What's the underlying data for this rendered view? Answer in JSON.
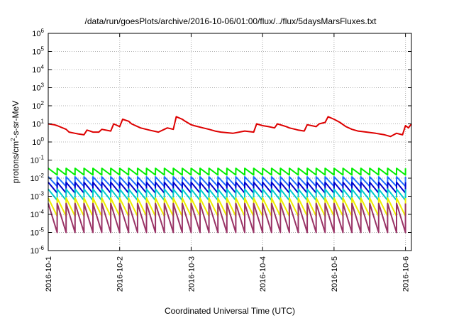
{
  "chart_data": {
    "type": "line",
    "title": "/data/run/goesPlots/archive/2016-10-06/01:00/flux/../flux/5daysMarsFluxes.txt",
    "xlabel": "Coordinated Universal Time (UTC)",
    "ylabel_prefix": "protons/cm",
    "ylabel_sup": "2",
    "ylabel_suffix": "-s-sr-MeV",
    "y_scale": "log",
    "ylim": [
      1e-06,
      1000000.0
    ],
    "xlim": [
      "2016-10-01T00:00",
      "2016-10-06T02:00"
    ],
    "grid": true,
    "legend": "none",
    "x_ticks": [
      "2016-10-1",
      "2016-10-2",
      "2016-10-3",
      "2016-10-4",
      "2016-10-5",
      "2016-10-6"
    ],
    "y_ticks": [
      {
        "base": "10",
        "exp": "6"
      },
      {
        "base": "10",
        "exp": "5"
      },
      {
        "base": "10",
        "exp": "4"
      },
      {
        "base": "10",
        "exp": "3"
      },
      {
        "base": "10",
        "exp": "2"
      },
      {
        "base": "10",
        "exp": "1"
      },
      {
        "base": "10",
        "exp": "0"
      },
      {
        "base": "10",
        "exp": "-1"
      },
      {
        "base": "10",
        "exp": "-2"
      },
      {
        "base": "10",
        "exp": "-3"
      },
      {
        "base": "10",
        "exp": "-4"
      },
      {
        "base": "10",
        "exp": "-5"
      },
      {
        "base": "10",
        "exp": "-6"
      }
    ],
    "series": [
      {
        "color": "#dd0000",
        "x": [
          "2016-10-01T00:00",
          "2016-10-01T02:00",
          "2016-10-01T03:00",
          "2016-10-01T06:00",
          "2016-10-01T07:00",
          "2016-10-01T09:00",
          "2016-10-01T10:00",
          "2016-10-01T12:00",
          "2016-10-01T13:00",
          "2016-10-01T14:00",
          "2016-10-01T15:00",
          "2016-10-01T17:00",
          "2016-10-01T18:00",
          "2016-10-01T21:00",
          "2016-10-01T22:00",
          "2016-10-02T00:00",
          "2016-10-02T01:00",
          "2016-10-02T03:00",
          "2016-10-02T04:00",
          "2016-10-02T07:00",
          "2016-10-02T10:00",
          "2016-10-02T13:00",
          "2016-10-02T16:00",
          "2016-10-02T18:00",
          "2016-10-02T19:00",
          "2016-10-02T21:00",
          "2016-10-02T22:00",
          "2016-10-03T00:00",
          "2016-10-03T01:00",
          "2016-10-03T04:00",
          "2016-10-03T06:00",
          "2016-10-03T08:00",
          "2016-10-03T10:00",
          "2016-10-03T14:00",
          "2016-10-03T18:00",
          "2016-10-03T21:00",
          "2016-10-03T22:00",
          "2016-10-04T00:00",
          "2016-10-04T02:00",
          "2016-10-04T04:00",
          "2016-10-04T05:00",
          "2016-10-04T08:00",
          "2016-10-04T09:00",
          "2016-10-04T11:00",
          "2016-10-04T12:00",
          "2016-10-04T14:00",
          "2016-10-04T15:00",
          "2016-10-04T18:00",
          "2016-10-04T19:00",
          "2016-10-04T21:00",
          "2016-10-04T22:00",
          "2016-10-05T00:00",
          "2016-10-05T02:00",
          "2016-10-05T04:00",
          "2016-10-05T06:00",
          "2016-10-05T08:00",
          "2016-10-05T11:00",
          "2016-10-05T14:00",
          "2016-10-05T17:00",
          "2016-10-05T19:00",
          "2016-10-05T21:00",
          "2016-10-05T23:00",
          "2016-10-06T00:00",
          "2016-10-06T01:00",
          "2016-10-06T02:00"
        ],
        "y": [
          10,
          9,
          8,
          5,
          3.5,
          3,
          2.8,
          2.5,
          4.5,
          4,
          3.5,
          3.5,
          5,
          4,
          10,
          7,
          18,
          14,
          10,
          6,
          4.5,
          3.5,
          6,
          5,
          25,
          18,
          14,
          9,
          8,
          6,
          5,
          4,
          3.5,
          3,
          4,
          3.5,
          10,
          8,
          7,
          6,
          10,
          7,
          6,
          5,
          4.5,
          4,
          9,
          7,
          10,
          12,
          25,
          18,
          12,
          7,
          5,
          4,
          3.5,
          3,
          2.5,
          2,
          3,
          2.5,
          8,
          6,
          10
        ]
      },
      {
        "color": "#00ee00",
        "x": [],
        "y": [],
        "sawtooth": {
          "period_hours": 3,
          "peak": 0.035,
          "trough": 0.015
        }
      },
      {
        "color": "#1e6fff",
        "x": [],
        "y": [],
        "sawtooth": {
          "period_hours": 3,
          "peak": 0.012,
          "trough": 0.0035
        }
      },
      {
        "color": "#0000cc",
        "x": [],
        "y": [],
        "sawtooth": {
          "period_hours": 3,
          "peak": 0.006,
          "trough": 0.0015
        }
      },
      {
        "color": "#00cccc",
        "x": [],
        "y": [],
        "sawtooth": {
          "period_hours": 3,
          "peak": 0.0025,
          "trough": 0.0006
        }
      },
      {
        "color": "#eeee00",
        "x": [],
        "y": [],
        "sawtooth": {
          "period_hours": 3,
          "peak": 0.0008,
          "trough": 8e-05
        }
      },
      {
        "color": "#993366",
        "x": [],
        "y": [],
        "sawtooth": {
          "period_hours": 3,
          "peak": 0.0004,
          "trough": 1e-05
        }
      }
    ]
  }
}
